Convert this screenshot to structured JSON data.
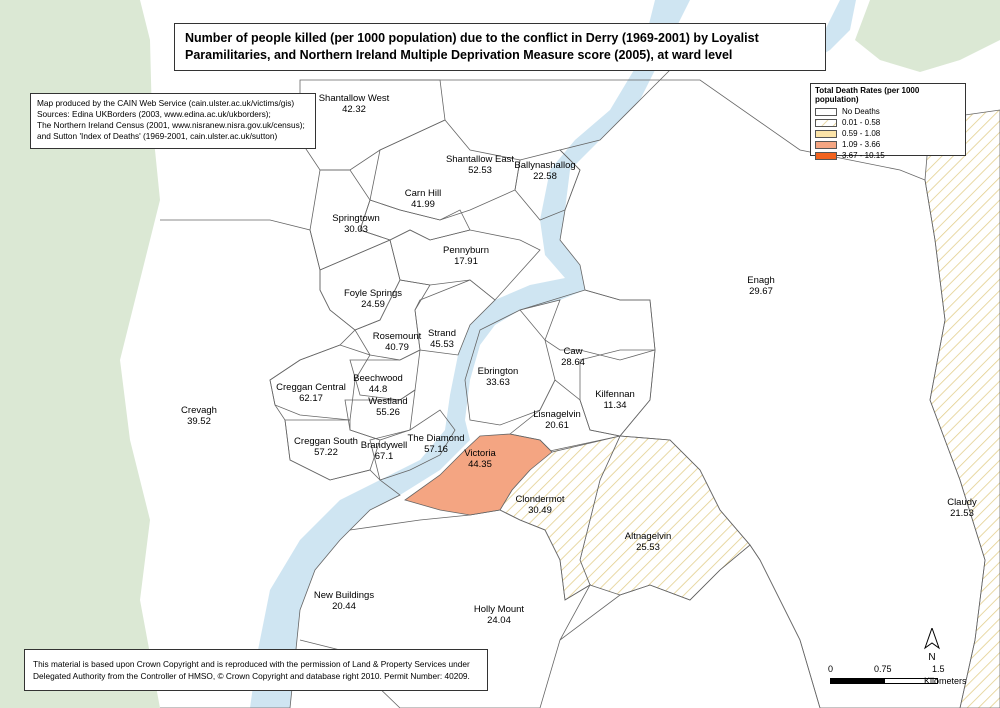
{
  "title": "Number of people killed (per 1000 population) due to the conflict in Derry (1969-2001) by Loyalist Paramilitaries, and Northern Ireland Multiple Deprivation Measure score (2005), at ward level",
  "info_lines": [
    "Map produced by the CAIN Web Service (cain.ulster.ac.uk/victims/gis)",
    "Sources: Edina UKBorders (2003, www.edina.ac.uk/ukborders);",
    "The Northern Ireland Census (2001, www.nisranew.nisra.gov.uk/census);",
    "and Sutton 'Index of Deaths' (1969-2001, cain.ulster.ac.uk/sutton)"
  ],
  "copyright_lines": [
    "This material is based upon Crown Copyright and is reproduced with the permission of Land & Property Services under",
    "Delegated Authority from the Controller of HMSO, © Crown Copyright and database right 2010. Permit Number: 40209."
  ],
  "legend": {
    "title": "Total Death Rates (per 1000 population)",
    "items": [
      {
        "label": "No Deaths",
        "fill": "#ffffff",
        "hatch": false
      },
      {
        "label": "0.01 - 0.58",
        "fill": "#ffffff",
        "hatch": true
      },
      {
        "label": "0.59 - 1.08",
        "fill": "#fbe3a8",
        "hatch": false
      },
      {
        "label": "1.09 - 3.66",
        "fill": "#f4a582",
        "hatch": false
      },
      {
        "label": "3.67 - 10.15",
        "fill": "#f2631f",
        "hatch": false
      }
    ]
  },
  "colors": {
    "river": "#cfe5f2",
    "green_land": "#dbe8d4",
    "border": "#666666",
    "hatch": "#e3cf8e",
    "victoria": "#f4a582"
  },
  "wards": [
    {
      "name": "Shantallow West",
      "value": "42.32",
      "category": "No Deaths"
    },
    {
      "name": "Shantallow East",
      "value": "52.53",
      "category": "No Deaths"
    },
    {
      "name": "Ballynashallog",
      "value": "22.58",
      "category": "No Deaths"
    },
    {
      "name": "Carn Hill",
      "value": "41.99",
      "category": "No Deaths"
    },
    {
      "name": "Springtown",
      "value": "30.03",
      "category": "No Deaths"
    },
    {
      "name": "Pennyburn",
      "value": "17.91",
      "category": "No Deaths"
    },
    {
      "name": "Enagh",
      "value": "29.67",
      "category": "No Deaths"
    },
    {
      "name": "Foyle Springs",
      "value": "24.59",
      "category": "No Deaths"
    },
    {
      "name": "Rosemount",
      "value": "40.79",
      "category": "No Deaths"
    },
    {
      "name": "Strand",
      "value": "45.53",
      "category": "No Deaths"
    },
    {
      "name": "Caw",
      "value": "28.64",
      "category": "No Deaths"
    },
    {
      "name": "Ebrington",
      "value": "33.63",
      "category": "No Deaths"
    },
    {
      "name": "Creggan Central",
      "value": "62.17",
      "category": "No Deaths"
    },
    {
      "name": "Beechwood",
      "value": "44.8",
      "category": "No Deaths"
    },
    {
      "name": "Westland",
      "value": "55.26",
      "category": "No Deaths"
    },
    {
      "name": "Kilfennan",
      "value": "11.34",
      "category": "No Deaths"
    },
    {
      "name": "Crevagh",
      "value": "39.52",
      "category": "No Deaths"
    },
    {
      "name": "Lisnagelvin",
      "value": "20.61",
      "category": "No Deaths"
    },
    {
      "name": "Creggan South",
      "value": "57.22",
      "category": "No Deaths"
    },
    {
      "name": "Brandywell",
      "value": "67.1",
      "category": "No Deaths"
    },
    {
      "name": "The Diamond",
      "value": "57.16",
      "category": "No Deaths"
    },
    {
      "name": "Victoria",
      "value": "44.35",
      "category": "1.09 - 3.66"
    },
    {
      "name": "Clondermot",
      "value": "30.49",
      "category": "0.01 - 0.58"
    },
    {
      "name": "Altnagelvin",
      "value": "25.53",
      "category": "0.01 - 0.58"
    },
    {
      "name": "Claudy",
      "value": "21.53",
      "category": "0.01 - 0.58"
    },
    {
      "name": "New Buildings",
      "value": "20.44",
      "category": "No Deaths"
    },
    {
      "name": "Holly Mount",
      "value": "24.04",
      "category": "No Deaths"
    }
  ],
  "scale_bar": {
    "labels": [
      "0",
      "0.75",
      "1.5"
    ],
    "unit": "Kilometers"
  },
  "north_label": "N"
}
